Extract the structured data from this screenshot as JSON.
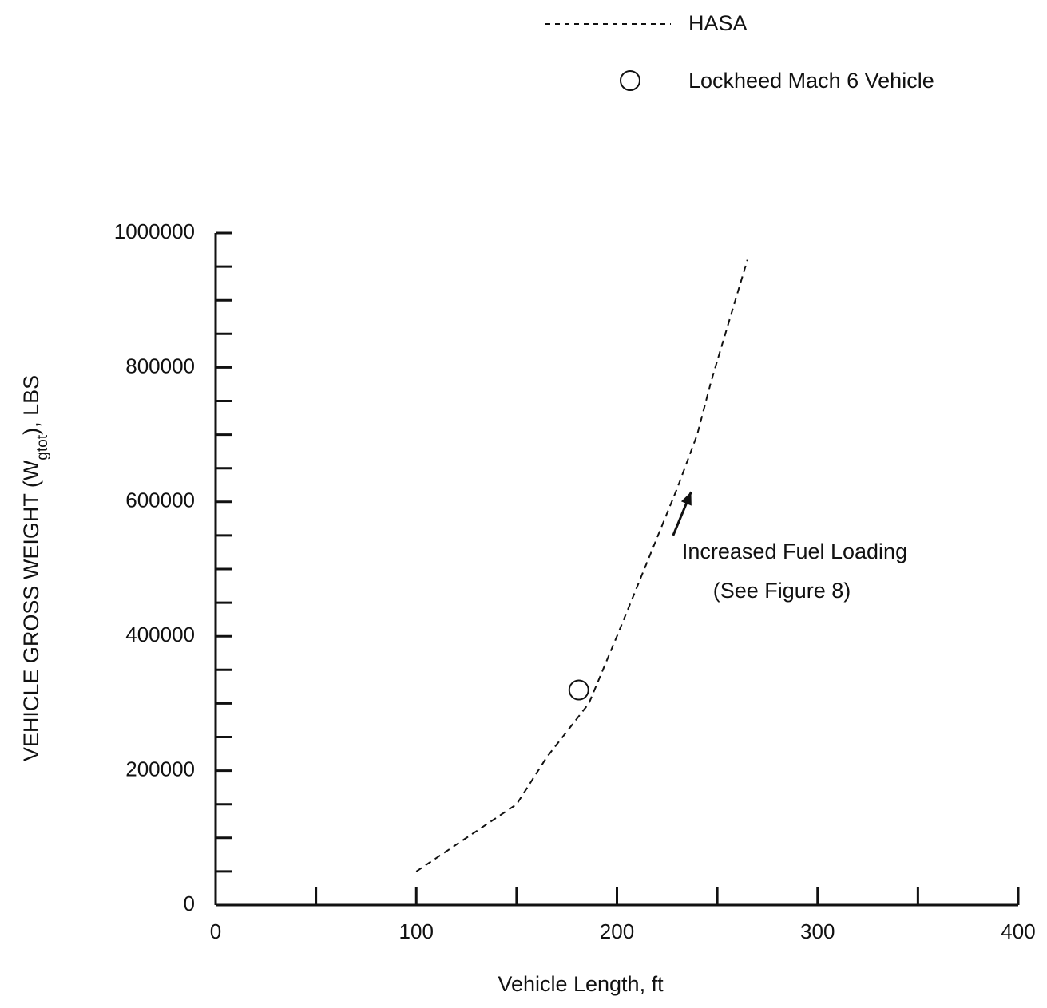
{
  "chart_data": {
    "type": "line",
    "xlabel": "Vehicle Length,  ft",
    "ylabel_main": "VEHICLE GROSS WEIGHT (W",
    "ylabel_sub": "gtot",
    "ylabel_end": "),  LBS",
    "xlim": [
      0,
      400
    ],
    "ylim": [
      0,
      1000000
    ],
    "x_ticks": [
      0,
      100,
      200,
      300,
      400
    ],
    "x_tick_labels": [
      "0",
      "100",
      "200",
      "300",
      "400"
    ],
    "x_minor_ticks": [
      50,
      150,
      250,
      350
    ],
    "y_ticks": [
      0,
      200000,
      400000,
      600000,
      800000,
      1000000
    ],
    "y_tick_labels": [
      "0",
      "200000",
      "400000",
      "600000",
      "800000",
      "1000000"
    ],
    "y_minor_step": 50000,
    "grid": false,
    "legend_position": "top-right",
    "series": [
      {
        "name": "HASA",
        "style": "dashed",
        "color": "#111111",
        "x": [
          100,
          120,
          140,
          150,
          165,
          186,
          200,
          215,
          230,
          240,
          247,
          255,
          265
        ],
        "y": [
          50000,
          90000,
          130000,
          150000,
          220000,
          300000,
          400000,
          510000,
          620000,
          700000,
          780000,
          860000,
          960000
        ]
      },
      {
        "name": "Lockheed Mach 6 Vehicle",
        "style": "open-circle",
        "color": "#111111",
        "x": [
          181
        ],
        "y": [
          320000
        ]
      }
    ],
    "annotations": [
      {
        "lines": [
          "Increased Fuel Loading",
          "(See Figure 8)"
        ],
        "arrow_from": [
          228,
          550000
        ],
        "arrow_to": [
          237,
          615000
        ]
      }
    ]
  }
}
